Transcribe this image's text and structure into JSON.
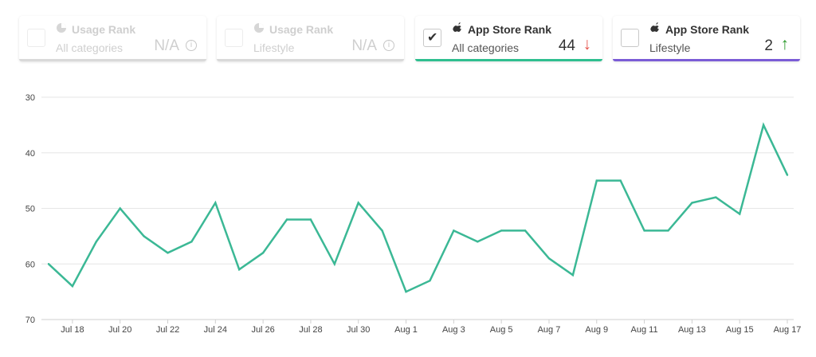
{
  "cards": [
    {
      "title": "Usage Rank",
      "subtitle": "All categories",
      "value": "N/A",
      "trend": "",
      "checked": false,
      "disabled": true,
      "icon": "usage-icon",
      "bar_color": "#d9d9d9"
    },
    {
      "title": "Usage Rank",
      "subtitle": "Lifestyle",
      "value": "N/A",
      "trend": "",
      "checked": false,
      "disabled": true,
      "icon": "usage-icon",
      "bar_color": "#d9d9d9"
    },
    {
      "title": "App Store Rank",
      "subtitle": "All categories",
      "value": "44",
      "trend": "↓",
      "trend_color": "#e5534b",
      "checked": true,
      "disabled": false,
      "icon": "apple-icon",
      "bar_color": "#2fbf8f"
    },
    {
      "title": "App Store Rank",
      "subtitle": "Lifestyle",
      "value": "2",
      "trend": "↑",
      "trend_color": "#2e9b2e",
      "checked": false,
      "disabled": false,
      "icon": "apple-icon",
      "bar_color": "#7b5cd6"
    }
  ],
  "chart_data": {
    "type": "line",
    "y_reversed": true,
    "ylim": [
      30,
      70
    ],
    "yticks": [
      30,
      40,
      50,
      60,
      70
    ],
    "grid": true,
    "line_color": "#3bb895",
    "x_tick_labels": [
      "Jul 18",
      "Jul 20",
      "Jul 22",
      "Jul 24",
      "Jul 26",
      "Jul 28",
      "Jul 30",
      "Aug 1",
      "Aug 3",
      "Aug 5",
      "Aug 7",
      "Aug 9",
      "Aug 11",
      "Aug 13",
      "Aug 15",
      "Aug 17"
    ],
    "x": [
      "Jul 17",
      "Jul 18",
      "Jul 19",
      "Jul 20",
      "Jul 21",
      "Jul 22",
      "Jul 23",
      "Jul 24",
      "Jul 25",
      "Jul 26",
      "Jul 27",
      "Jul 28",
      "Jul 29",
      "Jul 30",
      "Jul 31",
      "Aug 1",
      "Aug 2",
      "Aug 3",
      "Aug 4",
      "Aug 5",
      "Aug 6",
      "Aug 7",
      "Aug 8",
      "Aug 9",
      "Aug 10",
      "Aug 11",
      "Aug 12",
      "Aug 13",
      "Aug 14",
      "Aug 15",
      "Aug 16",
      "Aug 17"
    ],
    "series": [
      {
        "values": [
          60,
          64,
          56,
          50,
          55,
          58,
          56,
          49,
          61,
          58,
          52,
          52,
          60,
          49,
          54,
          65,
          63,
          54,
          56,
          54,
          54,
          59,
          62,
          45,
          45,
          54,
          54,
          49,
          48,
          51,
          35,
          44
        ]
      }
    ]
  }
}
